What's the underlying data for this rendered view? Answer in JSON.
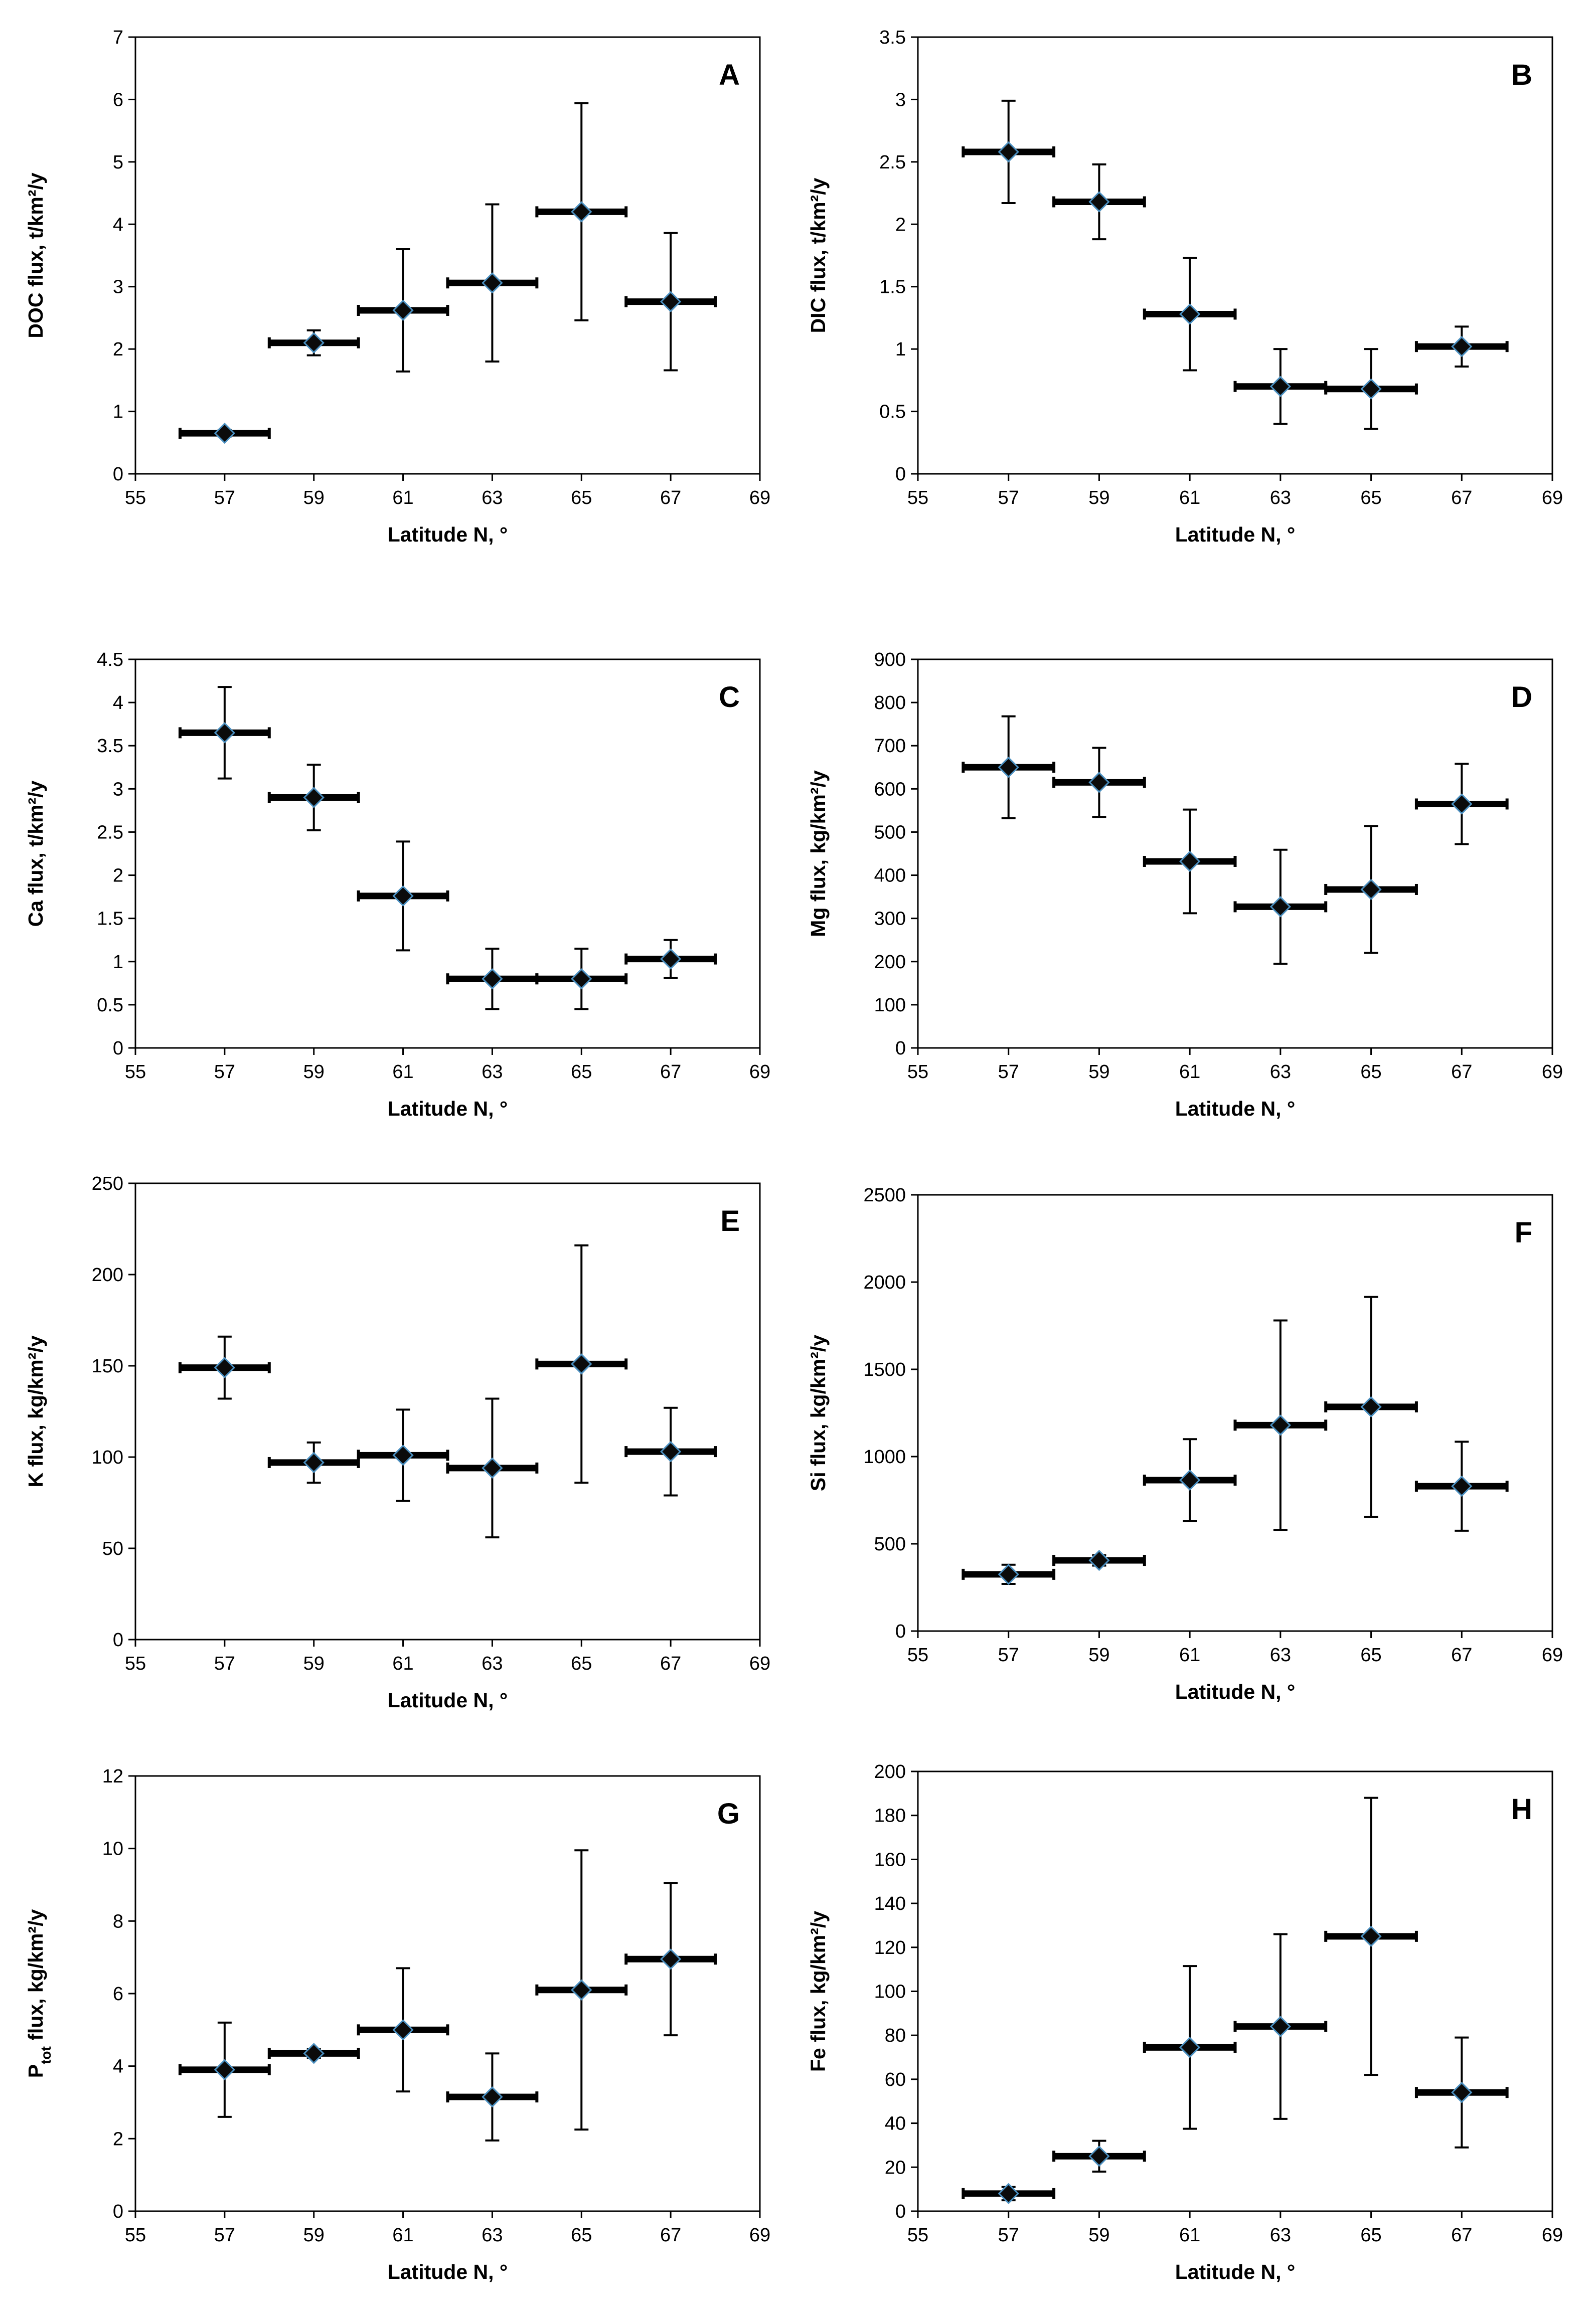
{
  "chart_data": [
    {
      "panel": "A",
      "type": "scatter",
      "xlabel": "Latitude N, °",
      "ylabel": "DOC flux, t/km²/y",
      "xlim": [
        55,
        69
      ],
      "xticks": [
        55,
        57,
        59,
        61,
        63,
        65,
        67,
        69
      ],
      "ylim": [
        0,
        7
      ],
      "yticks": [
        0,
        1,
        2,
        3,
        4,
        5,
        6,
        7
      ],
      "ytick_labels": [
        "0",
        "1",
        "2",
        "3",
        "4",
        "5",
        "6",
        "7"
      ],
      "points": [
        {
          "x": 57,
          "y": 0.65,
          "yerr": 0.05
        },
        {
          "x": 59,
          "y": 2.1,
          "yerr": 0.2
        },
        {
          "x": 61,
          "y": 2.62,
          "yerr": 0.98
        },
        {
          "x": 63,
          "y": 3.06,
          "yerr": 1.26
        },
        {
          "x": 65,
          "y": 4.2,
          "yerr": 1.74
        },
        {
          "x": 67,
          "y": 2.76,
          "yerr": 1.1
        }
      ],
      "xerr": 1
    },
    {
      "panel": "B",
      "type": "scatter",
      "xlabel": "Latitude N, °",
      "ylabel": "DIC flux, t/km²/y",
      "xlim": [
        55,
        69
      ],
      "xticks": [
        55,
        57,
        59,
        61,
        63,
        65,
        67,
        69
      ],
      "ylim": [
        0,
        3.5
      ],
      "yticks": [
        0,
        0.5,
        1,
        1.5,
        2,
        2.5,
        3,
        3.5
      ],
      "ytick_labels": [
        "0",
        "0.5",
        "1",
        "1.5",
        "2",
        "2.5",
        "3",
        "3.5"
      ],
      "points": [
        {
          "x": 57,
          "y": 2.58,
          "yerr": 0.41
        },
        {
          "x": 59,
          "y": 2.18,
          "yerr": 0.3
        },
        {
          "x": 61,
          "y": 1.28,
          "yerr": 0.45
        },
        {
          "x": 63,
          "y": 0.7,
          "yerr": 0.3
        },
        {
          "x": 65,
          "y": 0.68,
          "yerr": 0.32
        },
        {
          "x": 67,
          "y": 1.02,
          "yerr": 0.16
        }
      ],
      "xerr": 1
    },
    {
      "panel": "C",
      "type": "scatter",
      "xlabel": "Latitude N, °",
      "ylabel": "Ca flux, t/km²/y",
      "xlim": [
        55,
        69
      ],
      "xticks": [
        55,
        57,
        59,
        61,
        63,
        65,
        67,
        69
      ],
      "ylim": [
        0,
        4.5
      ],
      "yticks": [
        0,
        0.5,
        1,
        1.5,
        2,
        2.5,
        3,
        3.5,
        4,
        4.5
      ],
      "ytick_labels": [
        "0",
        "0.5",
        "1",
        "1.5",
        "2",
        "2.5",
        "3",
        "3.5",
        "4",
        "4.5"
      ],
      "points": [
        {
          "x": 57,
          "y": 3.65,
          "yerr": 0.53
        },
        {
          "x": 59,
          "y": 2.9,
          "yerr": 0.38
        },
        {
          "x": 61,
          "y": 1.76,
          "yerr": 0.63
        },
        {
          "x": 63,
          "y": 0.8,
          "yerr": 0.35
        },
        {
          "x": 65,
          "y": 0.8,
          "yerr": 0.35
        },
        {
          "x": 67,
          "y": 1.03,
          "yerr": 0.22
        }
      ],
      "xerr": 1
    },
    {
      "panel": "D",
      "type": "scatter",
      "xlabel": "Latitude N, °",
      "ylabel": "Mg flux, kg/km²/y",
      "xlim": [
        55,
        69
      ],
      "xticks": [
        55,
        57,
        59,
        61,
        63,
        65,
        67,
        69
      ],
      "ylim": [
        0,
        900
      ],
      "yticks": [
        0,
        100,
        200,
        300,
        400,
        500,
        600,
        700,
        800,
        900
      ],
      "ytick_labels": [
        "0",
        "100",
        "200",
        "300",
        "400",
        "500",
        "600",
        "700",
        "800",
        "900"
      ],
      "points": [
        {
          "x": 57,
          "y": 650,
          "yerr": 118
        },
        {
          "x": 59,
          "y": 615,
          "yerr": 80
        },
        {
          "x": 61,
          "y": 432,
          "yerr": 120
        },
        {
          "x": 63,
          "y": 327,
          "yerr": 132
        },
        {
          "x": 65,
          "y": 367,
          "yerr": 147
        },
        {
          "x": 67,
          "y": 565,
          "yerr": 93
        }
      ],
      "xerr": 1
    },
    {
      "panel": "E",
      "type": "scatter",
      "xlabel": "Latitude N, °",
      "ylabel": "K flux, kg/km²/y",
      "xlim": [
        55,
        69
      ],
      "xticks": [
        55,
        57,
        59,
        61,
        63,
        65,
        67,
        69
      ],
      "ylim": [
        0,
        250
      ],
      "yticks": [
        0,
        50,
        100,
        150,
        200,
        250
      ],
      "ytick_labels": [
        "0",
        "50",
        "100",
        "150",
        "200",
        "250"
      ],
      "points": [
        {
          "x": 57,
          "y": 149,
          "yerr": 17
        },
        {
          "x": 59,
          "y": 97,
          "yerr": 11
        },
        {
          "x": 61,
          "y": 101,
          "yerr": 25
        },
        {
          "x": 63,
          "y": 94,
          "yerr": 38
        },
        {
          "x": 65,
          "y": 151,
          "yerr": 65
        },
        {
          "x": 67,
          "y": 103,
          "yerr": 24
        }
      ],
      "xerr": 1
    },
    {
      "panel": "F",
      "type": "scatter",
      "xlabel": "Latitude N, °",
      "ylabel": "Si flux, kg/km²/y",
      "xlim": [
        55,
        69
      ],
      "xticks": [
        55,
        57,
        59,
        61,
        63,
        65,
        67,
        69
      ],
      "ylim": [
        0,
        2500
      ],
      "yticks": [
        0,
        500,
        1000,
        1500,
        2000,
        2500
      ],
      "ytick_labels": [
        "0",
        "500",
        "1000",
        "1500",
        "2000",
        "2500"
      ],
      "points": [
        {
          "x": 57,
          "y": 325,
          "yerr": 55
        },
        {
          "x": 59,
          "y": 405,
          "yerr": 30
        },
        {
          "x": 61,
          "y": 865,
          "yerr": 235
        },
        {
          "x": 63,
          "y": 1180,
          "yerr": 600
        },
        {
          "x": 65,
          "y": 1285,
          "yerr": 630
        },
        {
          "x": 67,
          "y": 830,
          "yerr": 255
        }
      ],
      "xerr": 1
    },
    {
      "panel": "G",
      "type": "scatter",
      "xlabel": "Latitude N, °",
      "ylabel_main": "P",
      "ylabel_sub": "tot",
      "ylabel_rest": " flux, kg/km²/y",
      "xlim": [
        55,
        69
      ],
      "xticks": [
        55,
        57,
        59,
        61,
        63,
        65,
        67,
        69
      ],
      "ylim": [
        0,
        12
      ],
      "yticks": [
        0,
        2,
        4,
        6,
        8,
        10,
        12
      ],
      "ytick_labels": [
        "0",
        "2",
        "4",
        "6",
        "8",
        "10",
        "12"
      ],
      "points": [
        {
          "x": 57,
          "y": 3.9,
          "yerr": 1.3
        },
        {
          "x": 59,
          "y": 4.35,
          "yerr": 0.12
        },
        {
          "x": 61,
          "y": 5.0,
          "yerr": 1.7
        },
        {
          "x": 63,
          "y": 3.15,
          "yerr": 1.2
        },
        {
          "x": 65,
          "y": 6.1,
          "yerr": 3.85
        },
        {
          "x": 67,
          "y": 6.95,
          "yerr": 2.1
        }
      ],
      "xerr": 1
    },
    {
      "panel": "H",
      "type": "scatter",
      "xlabel": "Latitude N, °",
      "ylabel": "Fe flux, kg/km²/y",
      "xlim": [
        55,
        69
      ],
      "xticks": [
        55,
        57,
        59,
        61,
        63,
        65,
        67,
        69
      ],
      "ylim": [
        0,
        200
      ],
      "yticks": [
        0,
        20,
        40,
        60,
        80,
        100,
        120,
        140,
        160,
        180,
        200
      ],
      "ytick_labels": [
        "0",
        "20",
        "40",
        "60",
        "80",
        "100",
        "120",
        "140",
        "160",
        "180",
        "200"
      ],
      "points": [
        {
          "x": 57,
          "y": 8,
          "yerr": 3
        },
        {
          "x": 59,
          "y": 25,
          "yerr": 7
        },
        {
          "x": 61,
          "y": 74.5,
          "yerr": 37
        },
        {
          "x": 63,
          "y": 84,
          "yerr": 42
        },
        {
          "x": 65,
          "y": 125,
          "yerr": 63
        },
        {
          "x": 67,
          "y": 54,
          "yerr": 25
        }
      ],
      "xerr": 1
    }
  ]
}
